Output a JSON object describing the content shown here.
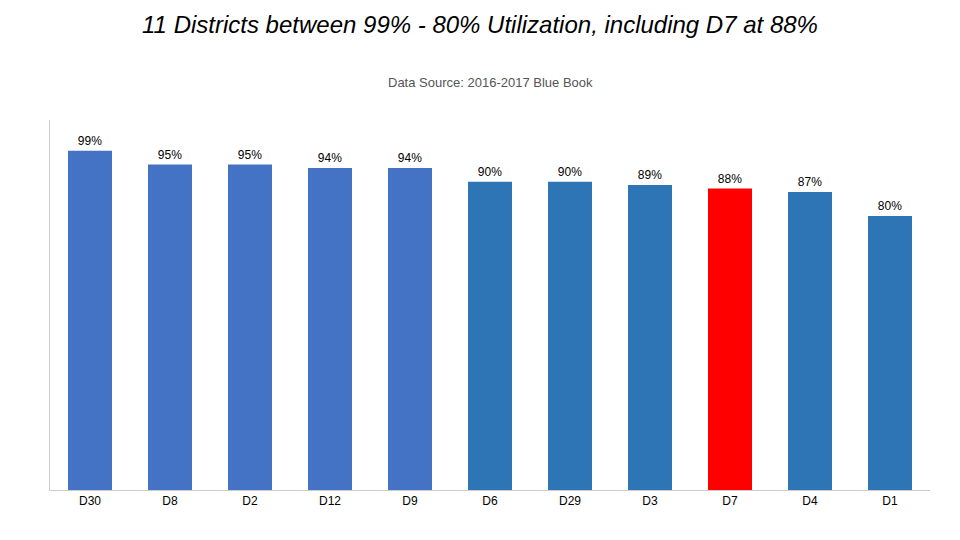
{
  "chart_data": {
    "type": "bar",
    "title": "11 Districts between 99% - 80% Utilization, including D7 at 88%",
    "subtitle": "Data Source: 2016-2017 Blue Book",
    "categories": [
      "D30",
      "D8",
      "D2",
      "D12",
      "D9",
      "D6",
      "D29",
      "D3",
      "D7",
      "D4",
      "D1"
    ],
    "values": [
      99,
      95,
      95,
      94,
      94,
      90,
      90,
      89,
      88,
      87,
      80
    ],
    "value_labels": [
      "99%",
      "95%",
      "95%",
      "94%",
      "94%",
      "90%",
      "90%",
      "89%",
      "88%",
      "87%",
      "80%"
    ],
    "colors": [
      "#4472C4",
      "#4472C4",
      "#4472C4",
      "#4472C4",
      "#4472C4",
      "#2E75B6",
      "#2E75B6",
      "#2E75B6",
      "#FF0000",
      "#2E75B6",
      "#2E75B6"
    ],
    "ylim": [
      0,
      108
    ],
    "grid": false,
    "data_labels": true,
    "tick_labels": "x"
  }
}
